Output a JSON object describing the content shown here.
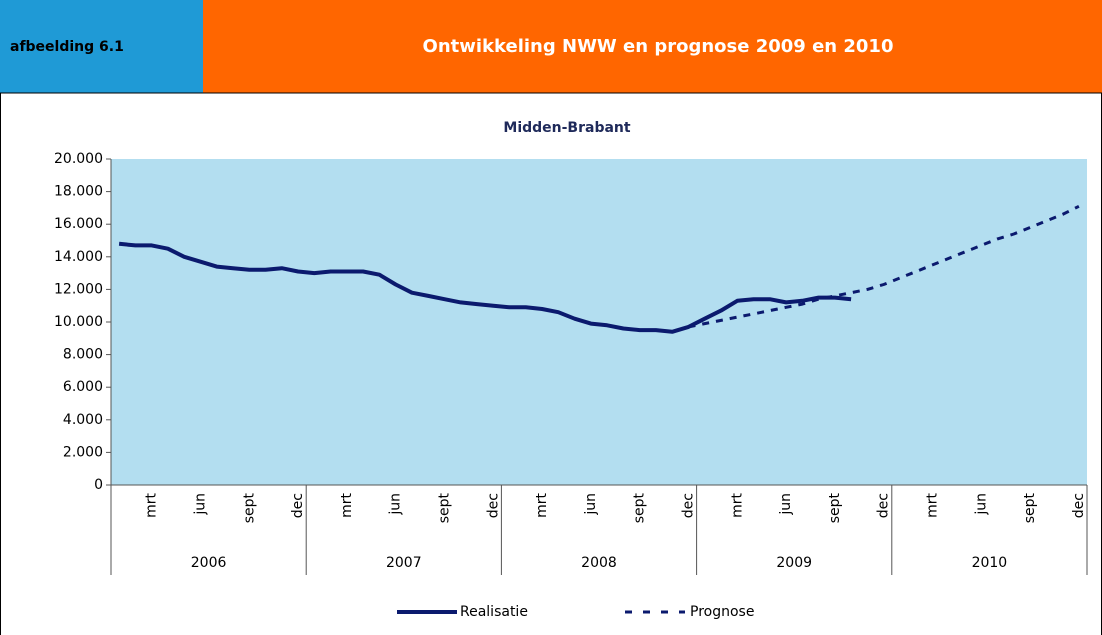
{
  "header": {
    "label": "afbeelding 6.1",
    "title": "Ontwikkeling NWW en prognose 2009 en 2010"
  },
  "chart_data": {
    "type": "line",
    "title": "Midden-Brabant",
    "categories": [
      null,
      null,
      "mrt",
      null,
      null,
      "jun",
      null,
      null,
      "sept",
      null,
      null,
      "dec",
      null,
      null,
      "mrt",
      null,
      null,
      "jun",
      null,
      null,
      "sept",
      null,
      null,
      "dec",
      null,
      null,
      "mrt",
      null,
      null,
      "jun",
      null,
      null,
      "sept",
      null,
      null,
      "dec",
      null,
      null,
      "mrt",
      null,
      null,
      "jun",
      null,
      null,
      "sept",
      null,
      null,
      "dec",
      null,
      null,
      "mrt",
      null,
      null,
      "jun",
      null,
      null,
      "sept",
      null,
      null,
      "dec"
    ],
    "year_groups": [
      "2006",
      "2007",
      "2008",
      "2009",
      "2010"
    ],
    "series": [
      {
        "name": "Realisatie",
        "color": "#0b1a6e",
        "dash": false,
        "values": [
          14800,
          14700,
          14700,
          14500,
          14000,
          13700,
          13400,
          13300,
          13200,
          13200,
          13300,
          13100,
          13000,
          13100,
          13100,
          13100,
          12900,
          12300,
          11800,
          11600,
          11400,
          11200,
          11100,
          11000,
          10900,
          10900,
          10800,
          10600,
          10200,
          9900,
          9800,
          9600,
          9500,
          9500,
          9400,
          9700,
          10200,
          10700,
          11300,
          11400,
          11400,
          11200,
          11300,
          11500,
          11500,
          11400,
          null,
          null,
          null,
          null,
          null,
          null,
          null,
          null,
          null,
          null,
          null,
          null,
          null,
          null
        ]
      },
      {
        "name": "Prognose",
        "color": "#0b1a6e",
        "dash": true,
        "values": [
          null,
          null,
          null,
          null,
          null,
          null,
          null,
          null,
          null,
          null,
          null,
          null,
          null,
          null,
          null,
          null,
          null,
          null,
          null,
          null,
          null,
          null,
          null,
          null,
          null,
          null,
          null,
          null,
          null,
          null,
          null,
          null,
          null,
          null,
          null,
          9700,
          9900,
          10100,
          10300,
          10500,
          10700,
          10900,
          11100,
          11400,
          11600,
          11800,
          12000,
          12300,
          12700,
          13100,
          13500,
          13900,
          14300,
          14700,
          15100,
          15400,
          15800,
          16200,
          16600,
          17100
        ]
      }
    ],
    "ylim": [
      0,
      20000
    ],
    "yticks": [
      {
        "value": 0,
        "label": "0"
      },
      {
        "value": 2000,
        "label": "2.000"
      },
      {
        "value": 4000,
        "label": "4.000"
      },
      {
        "value": 6000,
        "label": "6.000"
      },
      {
        "value": 8000,
        "label": "8.000"
      },
      {
        "value": 10000,
        "label": "10.000"
      },
      {
        "value": 12000,
        "label": "12.000"
      },
      {
        "value": 14000,
        "label": "14.000"
      },
      {
        "value": 16000,
        "label": "16.000"
      },
      {
        "value": 18000,
        "label": "18.000"
      },
      {
        "value": 20000,
        "label": "20.000"
      }
    ],
    "plot_color": "#b3def0"
  }
}
